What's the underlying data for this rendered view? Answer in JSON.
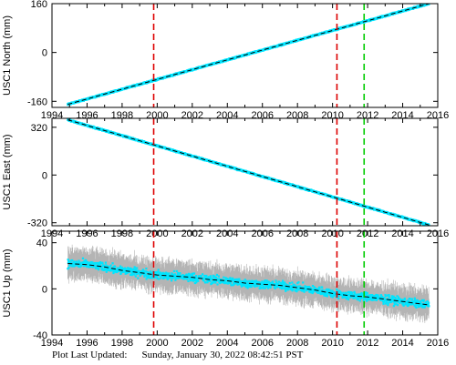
{
  "chart_data": [
    {
      "type": "scatter",
      "ylabel": "USC1 North (mm)",
      "xlim": [
        1994,
        2016
      ],
      "ylim": [
        -180,
        160
      ],
      "yticks": [
        -160,
        0,
        160
      ],
      "xticks": [
        1994,
        1996,
        1998,
        2000,
        2002,
        2004,
        2006,
        2008,
        2010,
        2012,
        2014,
        2016
      ],
      "grid": false,
      "series": [
        {
          "role": "observations",
          "color": "#00e5ff",
          "points": [
            [
              1994.9,
              -170
            ],
            [
              2015.5,
              160
            ]
          ]
        },
        {
          "role": "model-fit",
          "color": "#000000",
          "style": "dashed",
          "points": [
            [
              1994.9,
              -170
            ],
            [
              2015.5,
              160
            ]
          ]
        }
      ],
      "events": [
        {
          "x": 1999.8,
          "color": "#dd0000"
        },
        {
          "x": 2010.25,
          "color": "#dd0000"
        },
        {
          "x": 2011.8,
          "color": "#00cc00"
        }
      ]
    },
    {
      "type": "scatter",
      "ylabel": "USC1 East (mm)",
      "xlim": [
        1994,
        2016
      ],
      "ylim": [
        -340,
        380
      ],
      "yticks": [
        -320,
        0,
        320
      ],
      "xticks": [
        1994,
        1996,
        1998,
        2000,
        2002,
        2004,
        2006,
        2008,
        2010,
        2012,
        2014,
        2016
      ],
      "grid": false,
      "series": [
        {
          "role": "observations",
          "color": "#00e5ff",
          "points": [
            [
              1994.9,
              370
            ],
            [
              2015.5,
              -335
            ]
          ]
        },
        {
          "role": "model-fit",
          "color": "#000000",
          "style": "dashed",
          "points": [
            [
              1994.9,
              370
            ],
            [
              2015.5,
              -335
            ]
          ]
        }
      ],
      "events": [
        {
          "x": 1999.8,
          "color": "#dd0000"
        },
        {
          "x": 2010.25,
          "color": "#dd0000"
        },
        {
          "x": 2011.8,
          "color": "#00cc00"
        }
      ]
    },
    {
      "type": "scatter",
      "ylabel": "USC1 Up (mm)",
      "xlim": [
        1994,
        2016
      ],
      "ylim": [
        -40,
        50
      ],
      "yticks": [
        -40,
        0,
        40
      ],
      "xticks": [
        1994,
        1996,
        1998,
        2000,
        2002,
        2004,
        2006,
        2008,
        2010,
        2012,
        2014,
        2016
      ],
      "grid": false,
      "error_bars": {
        "color": "#b4b4b4",
        "typical_halfwidth_mm": 10
      },
      "series": [
        {
          "role": "observations",
          "color": "#00e5ff",
          "points": [
            [
              1994.9,
              22
            ],
            [
              1996,
              21
            ],
            [
              1997,
              19
            ],
            [
              1998,
              16
            ],
            [
              1999,
              14
            ],
            [
              2000,
              12
            ],
            [
              2001,
              11
            ],
            [
              2002,
              10
            ],
            [
              2003,
              8
            ],
            [
              2004,
              7
            ],
            [
              2005,
              5
            ],
            [
              2006,
              4
            ],
            [
              2007,
              3
            ],
            [
              2008,
              1
            ],
            [
              2009,
              -1
            ],
            [
              2010,
              -4
            ],
            [
              2011,
              -6
            ],
            [
              2012,
              -7
            ],
            [
              2013,
              -9
            ],
            [
              2014,
              -11
            ],
            [
              2015,
              -13
            ],
            [
              2015.5,
              -14
            ]
          ]
        },
        {
          "role": "model-fit",
          "color": "#000000",
          "style": "dashed",
          "points": [
            [
              1994.9,
              22
            ],
            [
              1996,
              21
            ],
            [
              1997,
              19
            ],
            [
              1998,
              16
            ],
            [
              1999,
              14
            ],
            [
              2000,
              12
            ],
            [
              2001,
              11
            ],
            [
              2002,
              10
            ],
            [
              2003,
              8
            ],
            [
              2004,
              7
            ],
            [
              2005,
              5
            ],
            [
              2006,
              4
            ],
            [
              2007,
              3
            ],
            [
              2008,
              1
            ],
            [
              2009,
              -1
            ],
            [
              2010,
              -4
            ],
            [
              2011,
              -6
            ],
            [
              2012,
              -7
            ],
            [
              2013,
              -9
            ],
            [
              2014,
              -11
            ],
            [
              2015,
              -13
            ],
            [
              2015.5,
              -14
            ]
          ]
        }
      ],
      "events": [
        {
          "x": 1999.8,
          "color": "#dd0000"
        },
        {
          "x": 2010.25,
          "color": "#dd0000"
        },
        {
          "x": 2011.8,
          "color": "#00cc00"
        }
      ]
    }
  ],
  "footer": {
    "label": "Plot Last Updated:",
    "value": "Sunday, January 30, 2022 08:42:51 PST"
  }
}
